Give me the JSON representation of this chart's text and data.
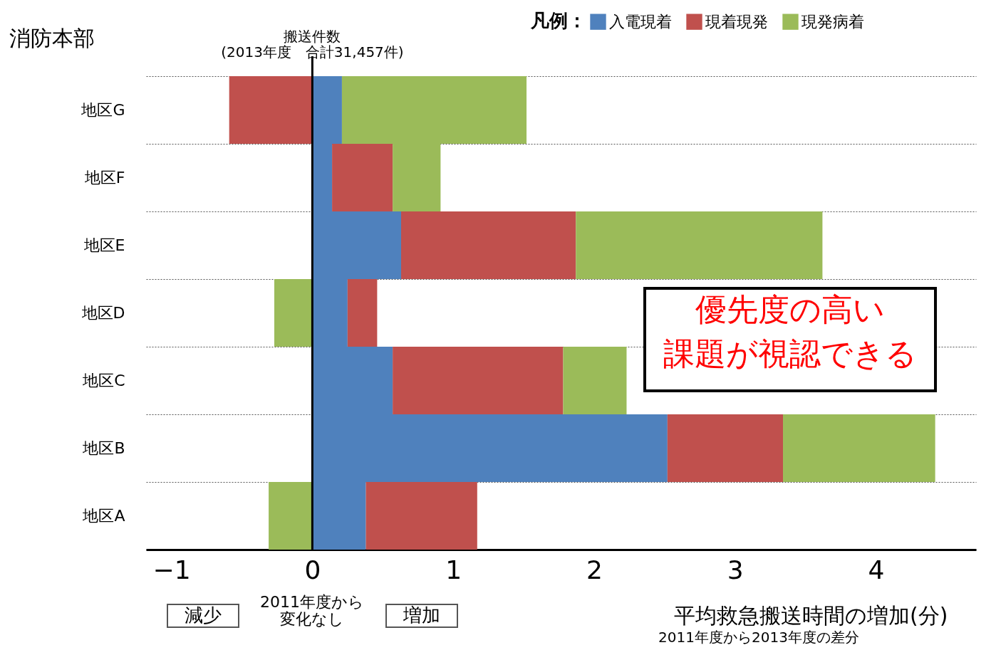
{
  "chart_data": {
    "type": "bar",
    "orientation": "horizontal",
    "title": "消防本部",
    "ylabel": "搬送件数\n(2013年度　合計31,457件)",
    "xlabel": "平均救急搬送時間の増加(分)",
    "legend_title": "凡例：",
    "legend": "top right",
    "grid": "y",
    "categories": [
      "地区G",
      "地区F",
      "地区E",
      "地区D",
      "地区C",
      "地区B",
      "地区A"
    ],
    "series": [
      {
        "name": "入電現着",
        "color": "#4f81bd",
        "base": [
          0,
          0,
          0,
          0,
          0,
          0,
          0
        ],
        "values": [
          0.21,
          0.14,
          0.63,
          0.25,
          0.57,
          2.52,
          0.38
        ]
      },
      {
        "name": "現着現発",
        "color": "#c0504d",
        "base": [
          0,
          0.14,
          0.63,
          0.25,
          0.57,
          2.52,
          0.38
        ],
        "values": [
          -0.59,
          0.43,
          1.24,
          0.21,
          1.21,
          0.82,
          0.79
        ]
      },
      {
        "name": "現発病着",
        "color": "#9bbb59",
        "base": [
          0.21,
          0.57,
          1.87,
          0,
          1.78,
          3.34,
          0
        ],
        "values": [
          1.31,
          0.34,
          1.75,
          -0.27,
          0.45,
          1.08,
          -0.31
        ]
      }
    ],
    "xlim": [
      -1.18,
      4.71
    ],
    "xticks": [
      -1,
      0,
      1,
      2,
      3,
      4
    ],
    "annotations": [
      "優先度の高い課題が視認できる",
      "減少",
      "2011年度から変化なし",
      "増加",
      "2011年度から2013年度の差分"
    ]
  }
}
